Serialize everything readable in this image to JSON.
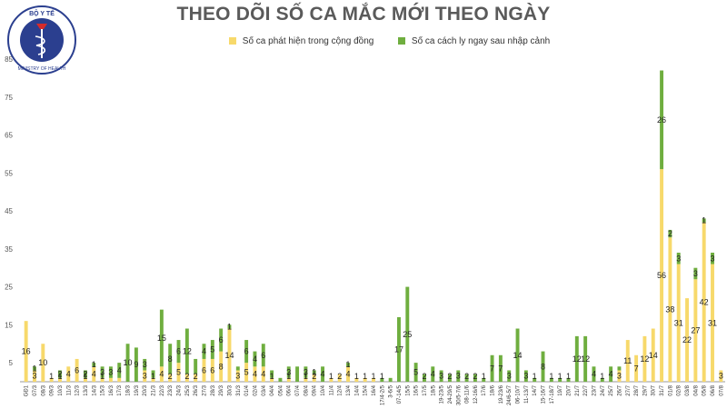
{
  "title": "THEO DÕI SỐ CA MẮC MỚI THEO NGÀY",
  "logo": {
    "top_text": "BỘ Y TẾ",
    "bottom_text": "MINISTRY OF HEALTH"
  },
  "colors": {
    "domestic": "#f7d96b",
    "imported": "#6fae3f",
    "title": "#5a5a5a",
    "axis": "#999999",
    "label": "#222222"
  },
  "legend": [
    {
      "name": "Số ca phát hiện trong cộng đồng",
      "color": "#f7d96b"
    },
    {
      "name": "Số ca cách ly ngay sau nhập cảnh",
      "color": "#6fae3f"
    }
  ],
  "chart_data": {
    "type": "bar",
    "stacked": true,
    "ylim": [
      0,
      85
    ],
    "yticks": [
      5,
      15,
      25,
      35,
      45,
      55,
      65,
      75,
      85
    ],
    "grid": false,
    "legend_position": "top-center",
    "categories": [
      "GĐ1",
      "07/3",
      "08/3",
      "09/3",
      "10/3",
      "11/3",
      "12/3",
      "13/3",
      "14/3",
      "15/3",
      "16/3",
      "17/3",
      "18/3",
      "19/3",
      "20/3",
      "21/3",
      "22/3",
      "23/3",
      "24/3",
      "25/3",
      "26/3",
      "27/3",
      "28/3",
      "29/3",
      "30/3",
      "31/3",
      "01/4",
      "02/4",
      "03/4",
      "04/4",
      "05/4",
      "06/4",
      "07/4",
      "08/4",
      "09/4",
      "10/4",
      "11/4",
      "12/4",
      "13/4",
      "14/4",
      "15/4",
      "16/4",
      "17/4-2/5",
      "3-6/5",
      "07-14/5",
      "15/5",
      "16/5",
      "17/5",
      "18/5",
      "19-23/5",
      "24-29/5",
      "30/5-7/6",
      "08-11/6",
      "12-16/6",
      "17/6",
      "18/6",
      "19-23/6",
      "24/6-5/7",
      "06-10/7",
      "11-13/7",
      "14/7",
      "15-16/7",
      "17-18/7",
      "19/7",
      "20/7",
      "21/7",
      "22/7",
      "23/7",
      "24/7",
      "25/7",
      "26/7",
      "27/7",
      "28/7",
      "29/7",
      "30/7",
      "31/7",
      "01/8",
      "02/8",
      "03/8",
      "04/8",
      "05/8",
      "06/8",
      "07/8"
    ],
    "series": [
      {
        "name": "Số ca phát hiện trong cộng đồng",
        "values": [
          16,
          3,
          10,
          1,
          1,
          4,
          6,
          1,
          4,
          1,
          1,
          1,
          0,
          0,
          3,
          1,
          4,
          2,
          5,
          2,
          2,
          6,
          6,
          8,
          14,
          3,
          5,
          4,
          4,
          1,
          0,
          1,
          0,
          1,
          2,
          0,
          1,
          2,
          4,
          1,
          1,
          1,
          0,
          0,
          0,
          0,
          0,
          0,
          0,
          0,
          0,
          0,
          0,
          0,
          0,
          0,
          0,
          0,
          0,
          0,
          0,
          0,
          0,
          0,
          0,
          0,
          0,
          0,
          0,
          0,
          3,
          11,
          7,
          12,
          14,
          56,
          38,
          31,
          22,
          27,
          42,
          31,
          3
        ]
      },
      {
        "name": "Số ca cách ly ngay sau nhập cảnh",
        "values": [
          0,
          1,
          0,
          0,
          2,
          0,
          0,
          2,
          1,
          3,
          3,
          4,
          10,
          9,
          3,
          2,
          15,
          8,
          6,
          12,
          4,
          4,
          5,
          6,
          1,
          1,
          6,
          4,
          6,
          2,
          1,
          3,
          4,
          3,
          1,
          4,
          0,
          0,
          1,
          0,
          0,
          0,
          1,
          1,
          17,
          25,
          5,
          2,
          4,
          3,
          2,
          3,
          2,
          2,
          1,
          7,
          7,
          3,
          14,
          3,
          1,
          8,
          1,
          1,
          1,
          12,
          12,
          4,
          1,
          4,
          1,
          0,
          0,
          0,
          0,
          26,
          2,
          3,
          0,
          3,
          1,
          3,
          0
        ]
      }
    ],
    "data_labels": [
      {
        "i": 0,
        "s": 0,
        "text": "16"
      },
      {
        "i": 1,
        "s": 0,
        "text": "3"
      },
      {
        "i": 1,
        "s": 1,
        "text": "1"
      },
      {
        "i": 2,
        "s": 0,
        "text": "10"
      },
      {
        "i": 3,
        "s": 0,
        "text": "1"
      },
      {
        "i": 4,
        "s": 0,
        "text": "1"
      },
      {
        "i": 4,
        "s": 1,
        "text": "2"
      },
      {
        "i": 5,
        "s": 0,
        "text": "4"
      },
      {
        "i": 6,
        "s": 0,
        "text": "6"
      },
      {
        "i": 7,
        "s": 0,
        "text": "1"
      },
      {
        "i": 7,
        "s": 1,
        "text": "2"
      },
      {
        "i": 8,
        "s": 0,
        "text": "4"
      },
      {
        "i": 8,
        "s": 1,
        "text": "1"
      },
      {
        "i": 9,
        "s": 0,
        "text": "1"
      },
      {
        "i": 9,
        "s": 1,
        "text": "3"
      },
      {
        "i": 10,
        "s": 1,
        "text": "3"
      },
      {
        "i": 11,
        "s": 1,
        "text": "4"
      },
      {
        "i": 12,
        "s": 1,
        "text": "10"
      },
      {
        "i": 13,
        "s": 1,
        "text": "9"
      },
      {
        "i": 14,
        "s": 0,
        "text": "3"
      },
      {
        "i": 14,
        "s": 1,
        "text": "3"
      },
      {
        "i": 15,
        "s": 0,
        "text": "1"
      },
      {
        "i": 16,
        "s": 0,
        "text": "4"
      },
      {
        "i": 16,
        "s": 1,
        "text": "15"
      },
      {
        "i": 17,
        "s": 0,
        "text": "2"
      },
      {
        "i": 17,
        "s": 1,
        "text": "8"
      },
      {
        "i": 18,
        "s": 0,
        "text": "5"
      },
      {
        "i": 18,
        "s": 1,
        "text": "6"
      },
      {
        "i": 19,
        "s": 0,
        "text": "2"
      },
      {
        "i": 19,
        "s": 1,
        "text": "12"
      },
      {
        "i": 20,
        "s": 0,
        "text": "2"
      },
      {
        "i": 21,
        "s": 0,
        "text": "6"
      },
      {
        "i": 21,
        "s": 1,
        "text": "4"
      },
      {
        "i": 22,
        "s": 0,
        "text": "6"
      },
      {
        "i": 22,
        "s": 1,
        "text": "5"
      },
      {
        "i": 23,
        "s": 0,
        "text": "8"
      },
      {
        "i": 23,
        "s": 1,
        "text": "6"
      },
      {
        "i": 24,
        "s": 0,
        "text": "14"
      },
      {
        "i": 24,
        "s": 1,
        "text": "1"
      },
      {
        "i": 25,
        "s": 0,
        "text": "3"
      },
      {
        "i": 26,
        "s": 0,
        "text": "5"
      },
      {
        "i": 26,
        "s": 1,
        "text": "6"
      },
      {
        "i": 27,
        "s": 0,
        "text": "4"
      },
      {
        "i": 27,
        "s": 1,
        "text": "4"
      },
      {
        "i": 28,
        "s": 0,
        "text": "4"
      },
      {
        "i": 28,
        "s": 1,
        "text": "6"
      },
      {
        "i": 29,
        "s": 0,
        "text": "1"
      },
      {
        "i": 31,
        "s": 0,
        "text": "1"
      },
      {
        "i": 31,
        "s": 1,
        "text": "3"
      },
      {
        "i": 33,
        "s": 0,
        "text": "1"
      },
      {
        "i": 33,
        "s": 1,
        "text": "3"
      },
      {
        "i": 34,
        "s": 0,
        "text": "2"
      },
      {
        "i": 34,
        "s": 1,
        "text": "1"
      },
      {
        "i": 35,
        "s": 1,
        "text": "4"
      },
      {
        "i": 36,
        "s": 0,
        "text": "1"
      },
      {
        "i": 37,
        "s": 0,
        "text": "2"
      },
      {
        "i": 38,
        "s": 0,
        "text": "4"
      },
      {
        "i": 38,
        "s": 1,
        "text": "1"
      },
      {
        "i": 39,
        "s": 0,
        "text": "1"
      },
      {
        "i": 40,
        "s": 0,
        "text": "1"
      },
      {
        "i": 41,
        "s": 0,
        "text": "1"
      },
      {
        "i": 42,
        "s": 1,
        "text": "1"
      },
      {
        "i": 44,
        "s": 1,
        "text": "17"
      },
      {
        "i": 45,
        "s": 1,
        "text": "25"
      },
      {
        "i": 46,
        "s": 1,
        "text": "5"
      },
      {
        "i": 47,
        "s": 1,
        "text": "2"
      },
      {
        "i": 48,
        "s": 1,
        "text": "4"
      },
      {
        "i": 49,
        "s": 1,
        "text": "3"
      },
      {
        "i": 50,
        "s": 1,
        "text": "2"
      },
      {
        "i": 51,
        "s": 1,
        "text": "3"
      },
      {
        "i": 52,
        "s": 1,
        "text": "2"
      },
      {
        "i": 53,
        "s": 1,
        "text": "2"
      },
      {
        "i": 54,
        "s": 1,
        "text": "1"
      },
      {
        "i": 55,
        "s": 1,
        "text": "7"
      },
      {
        "i": 56,
        "s": 1,
        "text": "7"
      },
      {
        "i": 57,
        "s": 1,
        "text": "3"
      },
      {
        "i": 58,
        "s": 1,
        "text": "14"
      },
      {
        "i": 59,
        "s": 1,
        "text": "3"
      },
      {
        "i": 60,
        "s": 1,
        "text": "1"
      },
      {
        "i": 61,
        "s": 1,
        "text": "8"
      },
      {
        "i": 62,
        "s": 1,
        "text": "1"
      },
      {
        "i": 63,
        "s": 1,
        "text": "1"
      },
      {
        "i": 64,
        "s": 1,
        "text": "1"
      },
      {
        "i": 65,
        "s": 1,
        "text": "12"
      },
      {
        "i": 66,
        "s": 1,
        "text": "12"
      },
      {
        "i": 67,
        "s": 1,
        "text": "4"
      },
      {
        "i": 68,
        "s": 1,
        "text": "1"
      },
      {
        "i": 69,
        "s": 1,
        "text": "4"
      },
      {
        "i": 70,
        "s": 0,
        "text": "3"
      },
      {
        "i": 71,
        "s": 0,
        "text": "11"
      },
      {
        "i": 72,
        "s": 0,
        "text": "7"
      },
      {
        "i": 73,
        "s": 0,
        "text": "12"
      },
      {
        "i": 74,
        "s": 0,
        "text": "14"
      },
      {
        "i": 75,
        "s": 0,
        "text": "56"
      },
      {
        "i": 75,
        "s": 1,
        "text": "26"
      },
      {
        "i": 76,
        "s": 0,
        "text": "38"
      },
      {
        "i": 76,
        "s": 1,
        "text": "2"
      },
      {
        "i": 77,
        "s": 0,
        "text": "31"
      },
      {
        "i": 77,
        "s": 1,
        "text": "3"
      },
      {
        "i": 78,
        "s": 0,
        "text": "22"
      },
      {
        "i": 79,
        "s": 0,
        "text": "27"
      },
      {
        "i": 79,
        "s": 1,
        "text": "3"
      },
      {
        "i": 80,
        "s": 0,
        "text": "42"
      },
      {
        "i": 80,
        "s": 1,
        "text": "1"
      },
      {
        "i": 81,
        "s": 0,
        "text": "31"
      },
      {
        "i": 81,
        "s": 1,
        "text": "3"
      },
      {
        "i": 82,
        "s": 0,
        "text": "3"
      }
    ]
  }
}
